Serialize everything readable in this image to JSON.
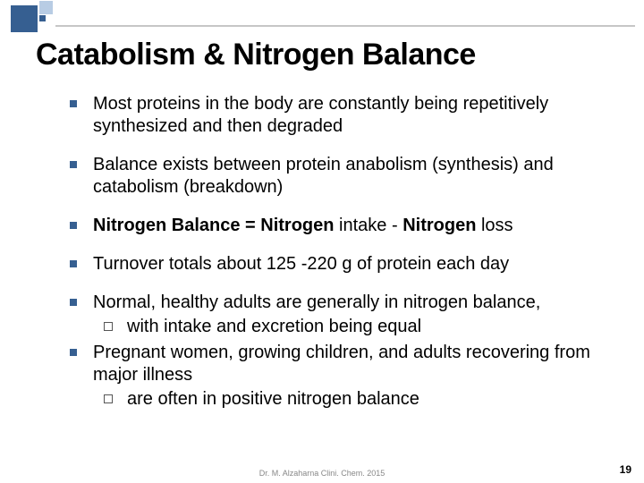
{
  "title": "Catabolism & Nitrogen Balance",
  "bullets": {
    "b1": "Most proteins in the body are constantly being repetitively synthesized and then degraded",
    "b2": "Balance exists between protein anabolism (synthesis) and catabolism (breakdown)",
    "b3_bold1": "Nitrogen Balance = Nitrogen",
    "b3_mid1": " intake - ",
    "b3_bold2": "Nitrogen",
    "b3_mid2": " loss",
    "b4": "Turnover totals about 125 -220 g of protein each day",
    "b5": "Normal, healthy adults are generally in nitrogen balance,",
    "b5_sub": "with intake and excretion being equal",
    "b6": "Pregnant women, growing children, and adults recovering from major illness",
    "b6_sub": "are often in positive nitrogen balance"
  },
  "footer": "Dr. M. Alzaharna Clini. Chem. 2015",
  "page_number": "19",
  "colors": {
    "accent": "#365f91",
    "accent_light": "#b8cce4",
    "text": "#000000",
    "footer": "#888888",
    "rule": "#c6c6c6"
  }
}
